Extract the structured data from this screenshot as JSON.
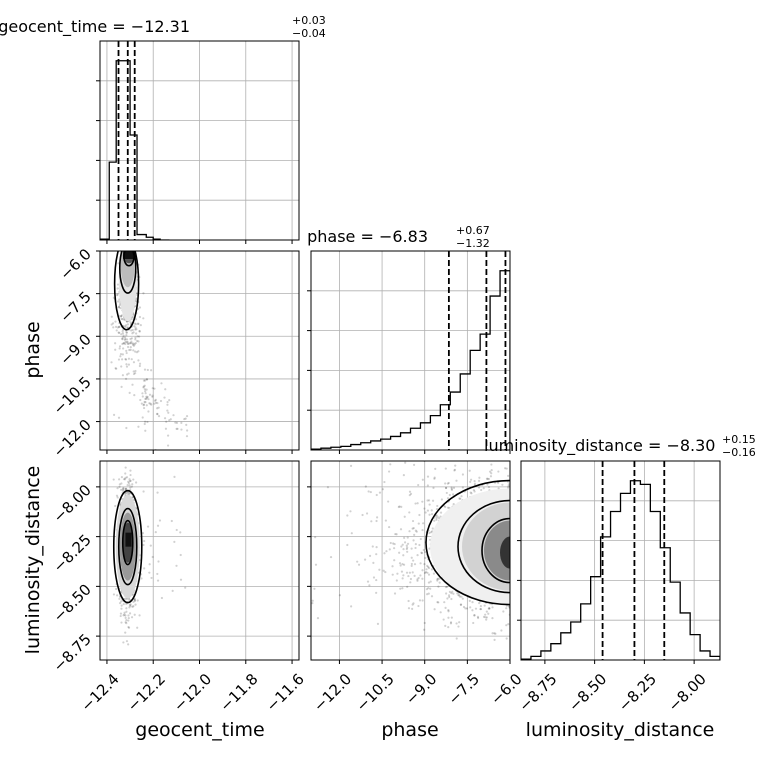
{
  "chart_data": {
    "type": "corner",
    "parameters": [
      "geocent_time",
      "phase",
      "luminosity_distance"
    ],
    "titles": [
      {
        "name": "geocent_time",
        "median": "−12.31",
        "plus": "+0.03",
        "minus": "−0.04"
      },
      {
        "name": "phase",
        "median": "−6.83",
        "plus": "+0.67",
        "minus": "−1.32"
      },
      {
        "name": "luminosity_distance",
        "median": "−8.30",
        "plus": "+0.15",
        "minus": "−0.16"
      }
    ],
    "axes": {
      "geocent_time": {
        "label": "geocent_time",
        "range": [
          -12.43,
          -11.57
        ],
        "ticks": [
          -12.4,
          -12.2,
          -12.0,
          -11.8,
          -11.6
        ],
        "tick_labels": [
          "−12.4",
          "−12.2",
          "−12.0",
          "−11.8",
          "−11.6"
        ]
      },
      "phase": {
        "label": "phase",
        "range": [
          -13.0,
          -6.0
        ],
        "ticks": [
          -12.0,
          -10.5,
          -9.0,
          -7.5,
          -6.0
        ],
        "tick_labels": [
          "−12.0",
          "−10.5",
          "−9.0",
          "−7.5",
          "−6.0"
        ]
      },
      "luminosity_distance": {
        "label": "luminosity_distance",
        "range": [
          -8.87,
          -7.87
        ],
        "ticks": [
          -8.75,
          -8.5,
          -8.25,
          -8.0
        ],
        "tick_labels": [
          "−8.75",
          "−8.50",
          "−8.25",
          "−8.00"
        ]
      }
    },
    "quantiles": {
      "geocent_time": [
        -12.35,
        -12.31,
        -12.28
      ],
      "phase": [
        -8.15,
        -6.83,
        -6.16
      ],
      "luminosity_distance": [
        -8.46,
        -8.3,
        -8.15
      ]
    },
    "histograms": {
      "geocent_time": {
        "edges": [
          -12.43,
          -12.39,
          -12.36,
          -12.33,
          -12.3,
          -12.27,
          -12.23,
          -12.2,
          -12.17,
          -12.13
        ],
        "counts": [
          0.005,
          0.43,
          0.99,
          0.99,
          0.58,
          0.03,
          0.015,
          0.005,
          0
        ]
      },
      "phase": {
        "edges": [
          -13.0,
          -12.65,
          -12.3,
          -11.95,
          -11.6,
          -11.25,
          -10.9,
          -10.55,
          -10.2,
          -9.85,
          -9.5,
          -9.15,
          -8.8,
          -8.45,
          -8.1,
          -7.75,
          -7.4,
          -7.05,
          -6.7,
          -6.35,
          -6.0
        ],
        "counts": [
          0.005,
          0.01,
          0.015,
          0.02,
          0.03,
          0.04,
          0.05,
          0.06,
          0.075,
          0.095,
          0.12,
          0.15,
          0.19,
          0.25,
          0.32,
          0.42,
          0.55,
          0.64,
          0.85,
          0.99
        ]
      },
      "luminosity_distance": {
        "edges": [
          -8.87,
          -8.82,
          -8.77,
          -8.72,
          -8.67,
          -8.62,
          -8.57,
          -8.52,
          -8.47,
          -8.42,
          -8.37,
          -8.32,
          -8.27,
          -8.22,
          -8.17,
          -8.12,
          -8.07,
          -8.02,
          -7.97,
          -7.92,
          -7.87
        ],
        "counts": [
          0.005,
          0.02,
          0.05,
          0.09,
          0.15,
          0.21,
          0.31,
          0.46,
          0.68,
          0.82,
          0.92,
          0.99,
          0.97,
          0.82,
          0.62,
          0.43,
          0.26,
          0.14,
          0.05,
          0.02
        ]
      }
    },
    "grid": true,
    "colors": {
      "line": "#000000",
      "grid": "#b0b0b0",
      "points": "#000000"
    }
  }
}
